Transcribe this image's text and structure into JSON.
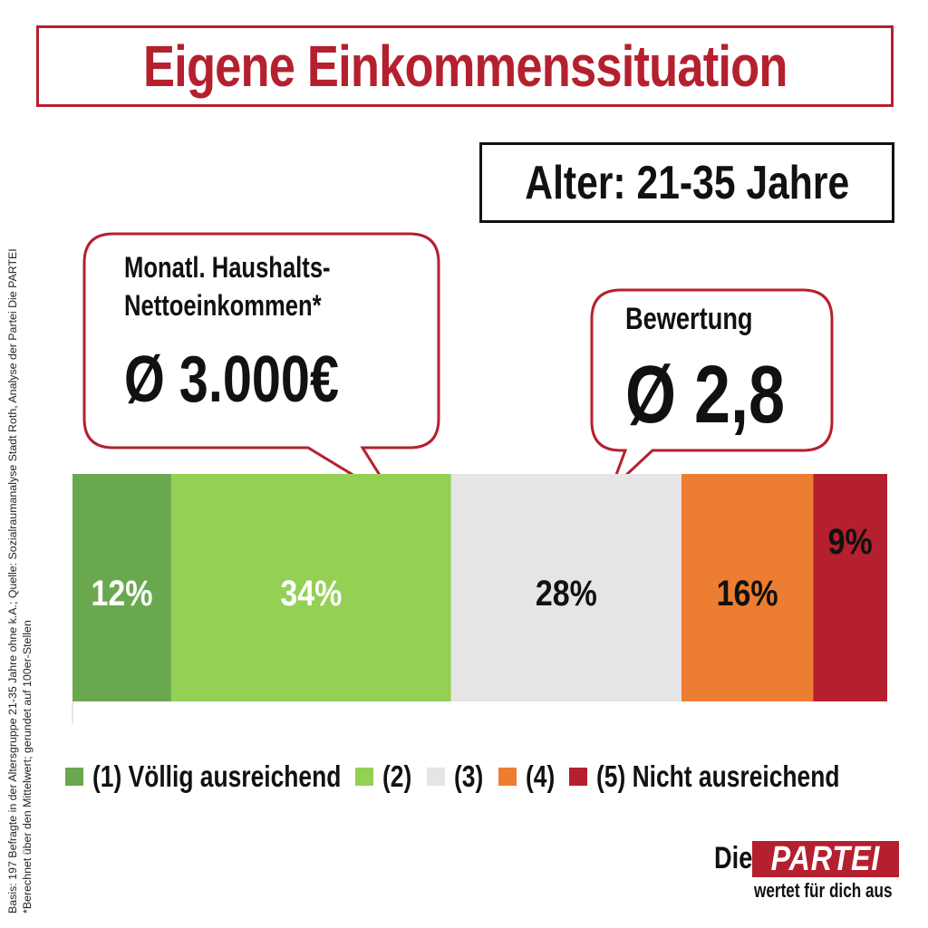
{
  "header": {
    "title": "Eigene Einkommenssituation",
    "subtitle": "Alter: 21-35 Jahre"
  },
  "callouts": {
    "income_label_line1": "Monatl. Haushalts-",
    "income_label_line2": "Nettoeinkommen*",
    "income_value": "Ø 3.000€",
    "rating_label": "Bewertung",
    "rating_value": "Ø 2,8"
  },
  "colors": {
    "accent": "#b5202e",
    "c1": "#6aa84f",
    "c2": "#93d054",
    "c3": "#e6e4e5",
    "c4": "#ed7d31",
    "c5": "#b5202e"
  },
  "chart_data": {
    "type": "bar",
    "orientation": "horizontal-stacked",
    "title": "Eigene Einkommenssituation",
    "categories": [
      "(1) Völlig ausreichend",
      "(2)",
      "(3)",
      "(4)",
      "(5) Nicht ausreichend"
    ],
    "values": [
      12,
      34,
      28,
      16,
      9
    ],
    "value_labels": [
      "12%",
      "34%",
      "28%",
      "16%",
      "9%"
    ],
    "colors": [
      "#6aa84f",
      "#93d054",
      "#e6e4e5",
      "#ed7d31",
      "#b5202e"
    ],
    "label_colors": [
      "#ffffff",
      "#ffffff",
      "#111111",
      "#111111",
      "#111111"
    ],
    "legend_position": "bottom"
  },
  "footnote": {
    "line1": "Basis: 197 Befragte in der Altersgruppe 21-35 Jahre ohne k.A.; Quelle: Sozialraumanalyse Stadt Roth, Analyse der Partei Die PARTEI",
    "line2": "*Berechnet über den Mittelwert; gerundet auf 100er-Stellen"
  },
  "logo": {
    "die": "Die",
    "partei": "PARTEI",
    "tagline": "wertet für dich aus"
  }
}
